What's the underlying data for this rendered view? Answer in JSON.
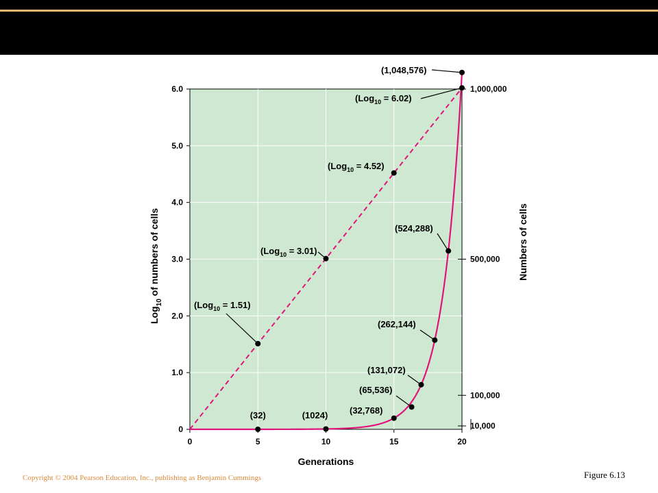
{
  "slide": {
    "copyright": "Copyright © 2004 Pearson Education, Inc., publishing as Benjamin Cummings",
    "figure_label": "Figure 6.13"
  },
  "chart_data": {
    "type": "line",
    "xlabel": "Generations",
    "ylabel_left": "Log10 of numbers of cells",
    "ylabel_right": "Numbers of cells",
    "xlim": [
      0,
      20
    ],
    "ylim": [
      0,
      6.0
    ],
    "x_ticks": [
      "0",
      "5",
      "10",
      "15",
      "20"
    ],
    "y_ticks": [
      "0",
      "1.0",
      "2.0",
      "3.0",
      "4.0",
      "5.0",
      "6.0"
    ],
    "right_ticks": [
      "10,000",
      "100,000",
      "500,000",
      "1,000,000"
    ],
    "grid": true,
    "colors": {
      "plot_background": "#cfe8d1",
      "series": "#e0147a",
      "grid": "#ffffff"
    },
    "series": [
      {
        "style": "dashed",
        "x": [
          0,
          5,
          10,
          15,
          20
        ],
        "y": [
          0,
          1.51,
          3.01,
          4.52,
          6.02
        ]
      },
      {
        "style": "solid",
        "x": [
          0,
          5,
          10,
          15,
          16.3,
          17,
          18,
          19,
          20
        ],
        "y": [
          0,
          32,
          1024,
          32768,
          65536,
          131072,
          262144,
          524288,
          1048576
        ]
      }
    ],
    "annotations": [
      {
        "text": "(Log",
        "sub": "10",
        "rest": " = 1.51)"
      },
      {
        "text": "(Log",
        "sub": "10",
        "rest": " = 3.01)"
      },
      {
        "text": "(Log",
        "sub": "10",
        "rest": " = 4.52)"
      },
      {
        "text": "(Log",
        "sub": "10",
        "rest": " = 6.02)"
      },
      {
        "text": "(32)"
      },
      {
        "text": "(1024)"
      },
      {
        "text": "(32,768)"
      },
      {
        "text": "(65,536)"
      },
      {
        "text": "(131,072)"
      },
      {
        "text": "(262,144)"
      },
      {
        "text": "(524,288)"
      },
      {
        "text": "(1,048,576)"
      }
    ]
  }
}
